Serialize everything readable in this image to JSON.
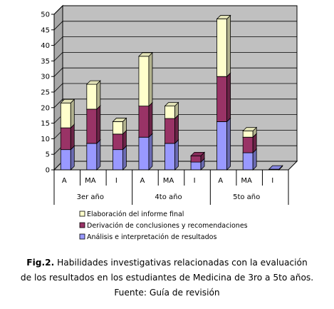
{
  "chart_data": {
    "type": "bar",
    "stacked": true,
    "three_d": true,
    "ylim": [
      0,
      50
    ],
    "yticks": [
      0,
      5,
      10,
      15,
      20,
      25,
      30,
      35,
      40,
      45,
      50
    ],
    "grid": true,
    "legend_position": "bottom",
    "groups": [
      "3er año",
      "4to año",
      "5to año"
    ],
    "categories": [
      "A",
      "MA",
      "I",
      "A",
      "MA",
      "I",
      "A",
      "MA",
      "I"
    ],
    "series": [
      {
        "name": "Análisis e interpretación de resultados",
        "color": "#9999ff",
        "values": [
          6.5,
          8.5,
          6.5,
          10.5,
          8.5,
          2.5,
          15.5,
          5.5,
          0.2
        ]
      },
      {
        "name": "Derivación de conclusiones y recomendaciones",
        "color": "#993366",
        "values": [
          7,
          11,
          5,
          10,
          8,
          2,
          14.5,
          5,
          0
        ]
      },
      {
        "name": "Elaboración del informe final",
        "color": "#ffffcc",
        "values": [
          8,
          8,
          4,
          16,
          4,
          0,
          18.5,
          2,
          0
        ]
      }
    ],
    "legend_order": [
      2,
      1,
      0
    ]
  },
  "caption": {
    "fig_label": "Fig.2.",
    "line1_rest": " Habilidades investigativas relacionadas con la evaluación",
    "line2": "de los resultados en los estudiantes de Medicina de 3ro a 5to años.",
    "line3": "Fuente: Guía de revisión"
  }
}
